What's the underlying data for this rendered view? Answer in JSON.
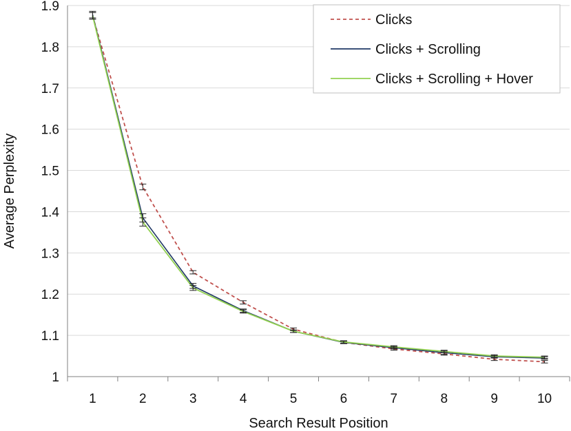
{
  "chart_data": {
    "type": "line",
    "xlabel": "Search Result Position",
    "ylabel": "Average Perplexity",
    "ylim": [
      1,
      1.9
    ],
    "yticks": [
      "1",
      "1.1",
      "1.2",
      "1.3",
      "1.4",
      "1.5",
      "1.6",
      "1.7",
      "1.8",
      "1.9"
    ],
    "categories": [
      "1",
      "2",
      "3",
      "4",
      "5",
      "6",
      "7",
      "8",
      "9",
      "10"
    ],
    "grid": "horizontal",
    "legend_position": "top-right",
    "series": [
      {
        "name": "Clicks",
        "color": "#c0504d",
        "style": "dashed",
        "values": [
          1.875,
          1.46,
          1.253,
          1.18,
          1.115,
          1.083,
          1.067,
          1.055,
          1.042,
          1.036
        ],
        "errors": [
          0.008,
          0.007,
          0.004,
          0.004,
          0.003,
          0.003,
          0.003,
          0.003,
          0.003,
          0.003
        ]
      },
      {
        "name": "Clicks + Scrolling",
        "color": "#1f3864",
        "style": "solid",
        "values": [
          1.878,
          1.385,
          1.22,
          1.16,
          1.11,
          1.083,
          1.07,
          1.058,
          1.048,
          1.045
        ],
        "errors": [
          0.008,
          0.01,
          0.006,
          0.004,
          0.003,
          0.003,
          0.003,
          0.004,
          0.003,
          0.003
        ]
      },
      {
        "name": "Clicks + Scrolling + Hover",
        "color": "#92d050",
        "style": "solid",
        "values": [
          1.875,
          1.375,
          1.215,
          1.158,
          1.11,
          1.084,
          1.072,
          1.061,
          1.05,
          1.047
        ],
        "errors": [
          0.008,
          0.01,
          0.006,
          0.004,
          0.003,
          0.003,
          0.003,
          0.003,
          0.003,
          0.003
        ]
      }
    ]
  }
}
